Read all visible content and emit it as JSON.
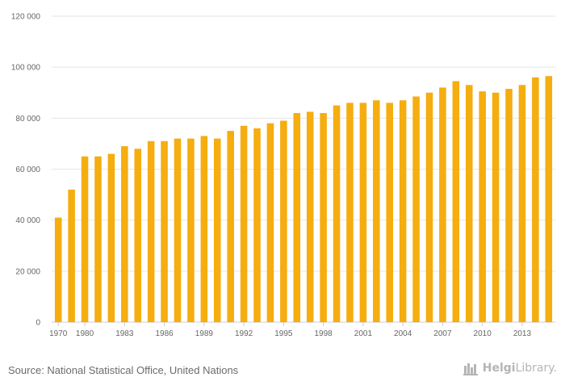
{
  "chart_data": {
    "type": "bar",
    "title": "",
    "xlabel": "",
    "ylabel": "",
    "ylim": [
      0,
      120000
    ],
    "y_ticks": [
      0,
      20000,
      40000,
      60000,
      80000,
      100000,
      120000
    ],
    "y_tick_labels": [
      "0",
      "20 000",
      "40 000",
      "60 000",
      "80 000",
      "100 000",
      "120 000"
    ],
    "categories": [
      "1970",
      "1979",
      "1980",
      "1981",
      "1982",
      "1983",
      "1984",
      "1985",
      "1986",
      "1987",
      "1988",
      "1989",
      "1990",
      "1991",
      "1992",
      "1993",
      "1994",
      "1995",
      "1996",
      "1997",
      "1998",
      "1999",
      "2000",
      "2001",
      "2002",
      "2003",
      "2004",
      "2005",
      "2006",
      "2007",
      "2008",
      "2009",
      "2010",
      "2011",
      "2012",
      "2013",
      "2014",
      "2015"
    ],
    "visible_x_labels": [
      "1970",
      "1980",
      "1983",
      "1986",
      "1989",
      "1992",
      "1995",
      "1998",
      "2001",
      "2004",
      "2007",
      "2010",
      "2013"
    ],
    "values": [
      41000,
      52000,
      65000,
      65000,
      66000,
      69000,
      68000,
      71000,
      71000,
      72000,
      72000,
      73000,
      72000,
      75000,
      77000,
      76000,
      78000,
      79000,
      82000,
      82500,
      82000,
      85000,
      86000,
      86000,
      87000,
      86000,
      87000,
      88500,
      90000,
      92000,
      94500,
      93000,
      90500,
      90000,
      91500,
      93000,
      96000,
      96500
    ],
    "bar_color": "#f5ad0f",
    "grid": true
  },
  "footer": {
    "source": "Source: National Statistical Office, United Nations",
    "brand_name": "Helgi",
    "brand_suffix": "Library."
  }
}
